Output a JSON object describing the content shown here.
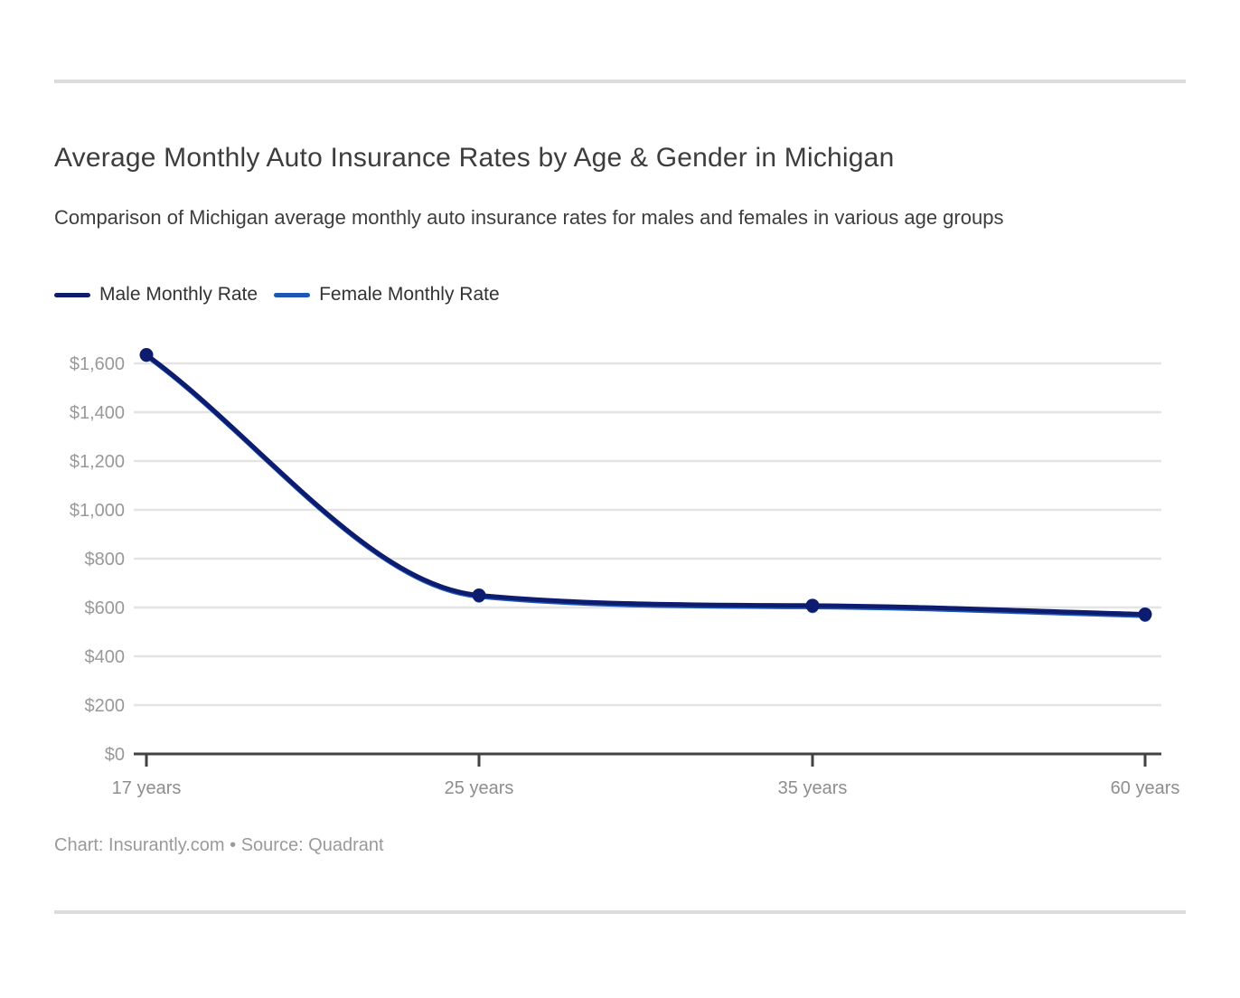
{
  "header": {
    "title": "Average Monthly Auto Insurance Rates by Age & Gender in Michigan",
    "subtitle": "Comparison of Michigan average monthly auto insurance rates for males and females in various age groups"
  },
  "legend": {
    "items": [
      {
        "label": "Male Monthly Rate",
        "color": "#0d1c6e"
      },
      {
        "label": "Female Monthly Rate",
        "color": "#1e56b8"
      }
    ]
  },
  "footer": {
    "credit": "Chart: Insurantly.com • Source: Quadrant"
  },
  "colors": {
    "male_line": "#0d1c6e",
    "female_line": "#1e56b8",
    "gridline": "#e4e4e4",
    "axis_line": "#424242",
    "tick_label": "#8e8e8e",
    "y_label": "#999999"
  },
  "chart_data": {
    "type": "line",
    "title": "Average Monthly Auto Insurance Rates by Age & Gender in Michigan",
    "subtitle": "Comparison of Michigan average monthly auto insurance rates for males and females in various age groups",
    "categories": [
      "17 years",
      "25 years",
      "35 years",
      "60 years"
    ],
    "series": [
      {
        "name": "Male Monthly Rate",
        "color": "#0d1c6e",
        "values": [
          1635,
          650,
          608,
          572
        ]
      },
      {
        "name": "Female Monthly Rate",
        "color": "#1e56b8",
        "values": [
          1630,
          644,
          601,
          565
        ]
      }
    ],
    "xlabel": "",
    "ylabel": "",
    "ylim": [
      0,
      1700
    ],
    "ytick_step": 200,
    "ytick_labels": [
      "$0",
      "$200",
      "$400",
      "$600",
      "$800",
      "$1,000",
      "$1,200",
      "$1,400",
      "$1,600"
    ],
    "ytick_prefix": "$",
    "grid": true,
    "legend_position": "top-left",
    "curve": "monotone",
    "note": "Female series nearly overlaps male series and is drawn behind it"
  }
}
